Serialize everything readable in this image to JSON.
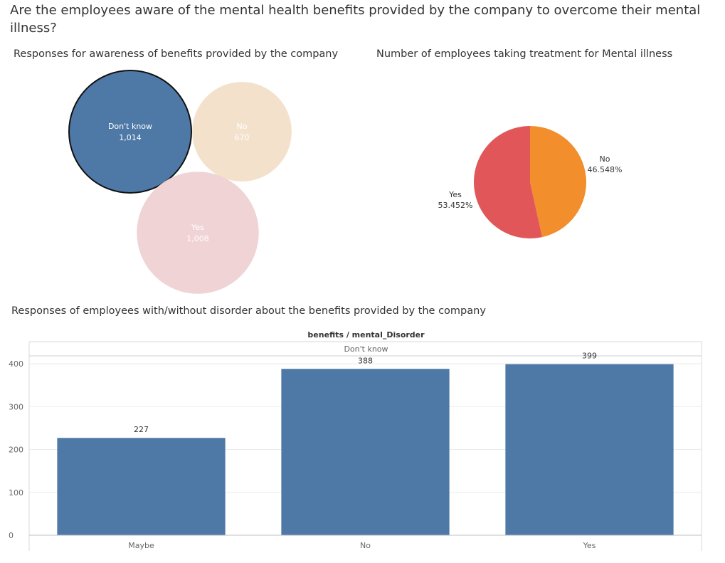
{
  "title": "Are the employees aware of the  mental health benefits provided by the company to overcome their mental illness?",
  "colors": {
    "blue": "#4e79a7",
    "beige": "#f3e1cc",
    "pink": "#f0d3d5",
    "red": "#e15759",
    "orange": "#f28e2b",
    "text": "#333333",
    "grid": "#ebebeb",
    "axis": "#d9d9d9"
  },
  "chart_data": [
    {
      "type": "bubble",
      "title": "Responses for awareness of benefits provided by the company",
      "points": [
        {
          "label": "Don't know",
          "value": "1,014",
          "count": 1014,
          "highlighted": true
        },
        {
          "label": "No",
          "value": "670",
          "count": 670,
          "highlighted": false
        },
        {
          "label": "Yes",
          "value": "1,008",
          "count": 1008,
          "highlighted": false
        }
      ]
    },
    {
      "type": "pie",
      "title": "Number of employees taking treatment for Mental illness",
      "slices": [
        {
          "label": "No",
          "value": 46.548,
          "display": "46.548%"
        },
        {
          "label": "Yes",
          "value": 53.452,
          "display": "53.452%"
        }
      ]
    },
    {
      "type": "bar",
      "title": "Responses of employees with/without disorder about the benefits provided by the company",
      "header": "benefits / mental_Disorder",
      "subheader": "Don't know",
      "categories": [
        "Maybe",
        "No",
        "Yes"
      ],
      "values": [
        227,
        388,
        399
      ],
      "value_labels": [
        "227",
        "388",
        "399"
      ],
      "yticks": [
        "0",
        "100",
        "200",
        "300",
        "400"
      ],
      "ylim": [
        0,
        410
      ],
      "grid": true
    }
  ]
}
